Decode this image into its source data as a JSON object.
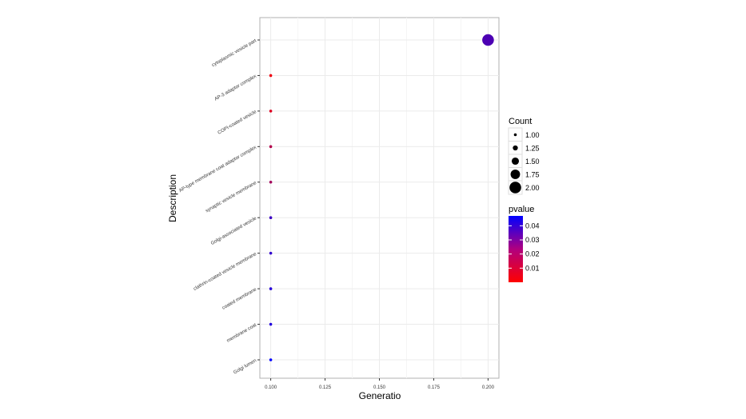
{
  "chart_data": {
    "type": "scatter",
    "xlabel": "Generatio",
    "ylabel": "Description",
    "xlim": [
      0.095,
      0.205
    ],
    "x_ticks": [
      "0.100",
      "0.125",
      "0.150",
      "0.175",
      "0.200"
    ],
    "x_tick_values": [
      0.1,
      0.125,
      0.15,
      0.175,
      0.2
    ],
    "grid": true,
    "legend_position": "right",
    "categories": [
      "cytoplasmic vesicle part",
      "AP-3 adaptor complex",
      "COPI-coated vesicle",
      "AP-type membrane coat adaptor complex",
      "synaptic vesicle membrane",
      "Golgi-associated vesicle",
      "clathrin-coated vesicle membrane",
      "coated membrane",
      "membrane coat",
      "Golgi lumen"
    ],
    "points": [
      {
        "x": 0.2,
        "count": 2,
        "pvalue": 0.033
      },
      {
        "x": 0.1,
        "count": 1,
        "pvalue": 0.003
      },
      {
        "x": 0.1,
        "count": 1,
        "pvalue": 0.006
      },
      {
        "x": 0.1,
        "count": 1,
        "pvalue": 0.014
      },
      {
        "x": 0.1,
        "count": 1,
        "pvalue": 0.017
      },
      {
        "x": 0.1,
        "count": 1,
        "pvalue": 0.036
      },
      {
        "x": 0.1,
        "count": 1,
        "pvalue": 0.038
      },
      {
        "x": 0.1,
        "count": 1,
        "pvalue": 0.04
      },
      {
        "x": 0.1,
        "count": 1,
        "pvalue": 0.041
      },
      {
        "x": 0.1,
        "count": 1,
        "pvalue": 0.047
      }
    ],
    "size_legend": {
      "title": "Count",
      "labels": [
        "1.00",
        "1.25",
        "1.50",
        "1.75",
        "2.00"
      ],
      "values": [
        1,
        1.25,
        1.5,
        1.75,
        2
      ]
    },
    "color_legend": {
      "title": "pvalue",
      "labels": [
        "0.04",
        "0.03",
        "0.02",
        "0.01"
      ],
      "values": [
        0.04,
        0.03,
        0.02,
        0.01
      ],
      "range": [
        0.0,
        0.047
      ],
      "low_color": "#ff0000",
      "high_color": "#0000ff"
    }
  }
}
